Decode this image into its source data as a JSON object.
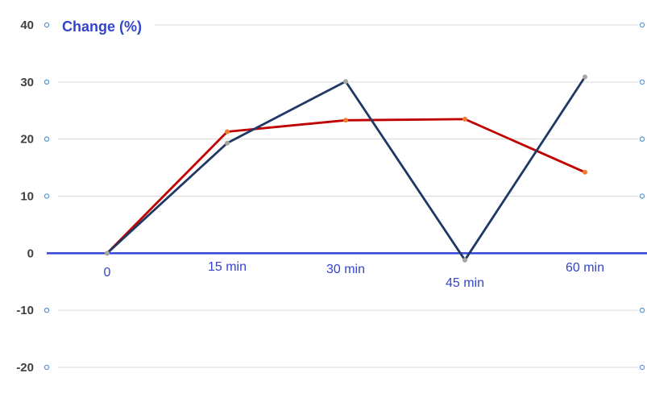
{
  "chart_data": {
    "type": "line",
    "ylabel": "Change (%)",
    "xlabel": "",
    "categories": [
      "0",
      "15 min",
      "30 min",
      "45 min",
      "60 min"
    ],
    "ylim": [
      -20,
      40
    ],
    "yticks": [
      40,
      30,
      20,
      10,
      0,
      -10,
      -20
    ],
    "grid": true,
    "series": [
      {
        "color": "#c00000",
        "values": [
          0,
          21.3,
          23.3,
          23.5,
          14.2
        ]
      },
      {
        "color": "#1f3864",
        "values": [
          0,
          19.3,
          30.1,
          -1.2,
          30.9
        ]
      }
    ],
    "zero_line_color": "#3344dd",
    "gridline_color": "#d9d9d9",
    "tick_marker_color": "#5b9bd5",
    "label_color": "#3344cc"
  }
}
